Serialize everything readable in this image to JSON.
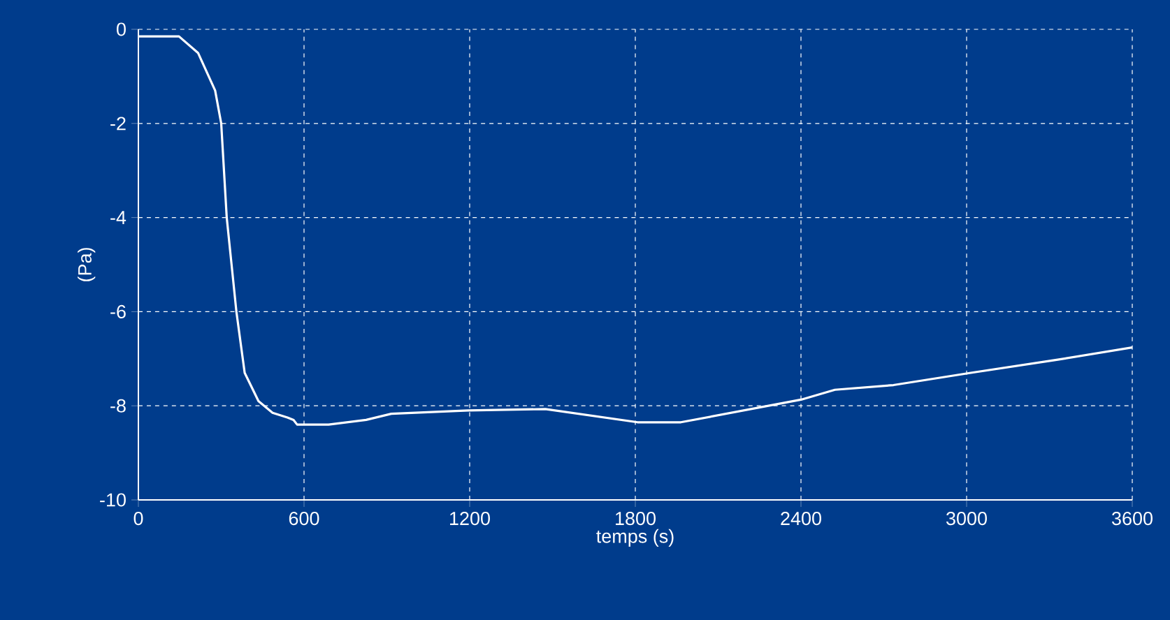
{
  "chart_data": {
    "type": "line",
    "xlabel": "temps (s)",
    "ylabel": "(Pa)",
    "x": [
      0,
      147,
      216,
      278,
      300,
      320,
      355,
      385,
      435,
      486,
      540,
      562,
      575,
      689,
      825,
      916,
      1195,
      1474,
      1808,
      1965,
      2400,
      2523,
      2735,
      3015,
      3330,
      3600
    ],
    "series": [
      {
        "color": "#ffffff",
        "values": [
          -0.15,
          -0.15,
          -0.5,
          -1.3,
          -2,
          -4,
          -6,
          -7.3,
          -7.9,
          -8.15,
          -8.25,
          -8.3,
          -8.4,
          -8.4,
          -8.3,
          -8.17,
          -8.1,
          -8.07,
          -8.35,
          -8.35,
          -7.87,
          -7.66,
          -7.56,
          -7.3,
          -7.02,
          -6.76
        ]
      }
    ],
    "xlim": [
      0,
      3600
    ],
    "ylim": [
      -10,
      0
    ],
    "xticks": [
      0,
      600,
      1200,
      1800,
      2400,
      3000,
      3600
    ],
    "yticks": [
      -10,
      -8,
      -6,
      -4,
      -2,
      0
    ],
    "grid": true,
    "marker": "none",
    "line_style": "solid"
  }
}
